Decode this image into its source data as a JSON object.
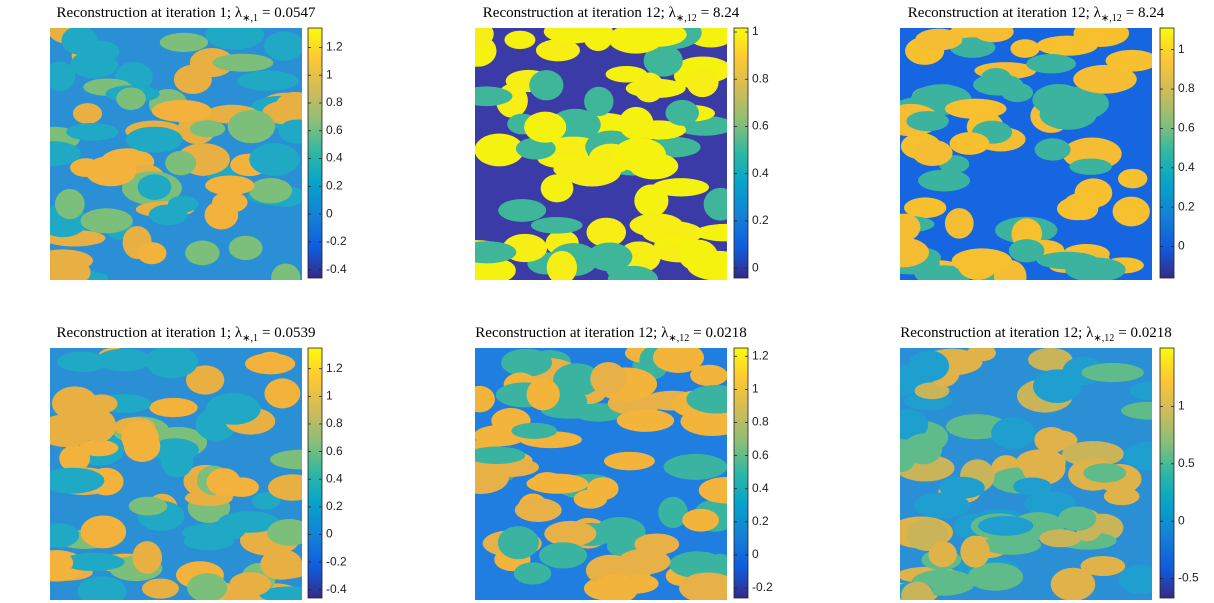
{
  "chart_data": [
    {
      "type": "image",
      "title": "Reconstruction at iteration 1; λ",
      "title_sub": "∗,1",
      "title_rest": "= 0.0547",
      "ylim": [
        -0.46,
        1.34
      ],
      "yticks": [
        -0.4,
        -0.2,
        0,
        0.2,
        0.4,
        0.6,
        0.8,
        1,
        1.2
      ]
    },
    {
      "type": "image",
      "title": "Reconstruction at iteration 12; λ",
      "title_sub": "∗,12",
      "title_rest": "= 8.24",
      "ylim": [
        -0.042,
        1.017
      ],
      "yticks": [
        0,
        0.2,
        0.4,
        0.6,
        0.8,
        1
      ]
    },
    {
      "type": "image",
      "title": "Reconstruction at iteration 12; λ",
      "title_sub": "∗,12",
      "title_rest": "= 8.24",
      "ylim": [
        -0.16,
        1.11
      ],
      "yticks": [
        0,
        0.2,
        0.4,
        0.6,
        0.8,
        1
      ]
    },
    {
      "type": "image",
      "title": "Reconstruction at iteration 1; λ",
      "title_sub": "∗,1",
      "title_rest": "= 0.0539",
      "ylim": [
        -0.46,
        1.35
      ],
      "yticks": [
        -0.4,
        -0.2,
        0,
        0.2,
        0.4,
        0.6,
        0.8,
        1,
        1.2
      ]
    },
    {
      "type": "image",
      "title": "Reconstruction at iteration 12; λ",
      "title_sub": "∗,12",
      "title_rest": "= 0.0218",
      "ylim": [
        -0.26,
        1.25
      ],
      "yticks": [
        -0.2,
        0,
        0.2,
        0.4,
        0.6,
        0.8,
        1,
        1.2
      ]
    },
    {
      "type": "image",
      "title": "Reconstruction at iteration 12; λ",
      "title_sub": "∗,12",
      "title_rest": "= 0.0218",
      "ylim": [
        -0.67,
        1.51
      ],
      "yticks": [
        -0.5,
        0,
        0.5,
        1
      ]
    }
  ]
}
